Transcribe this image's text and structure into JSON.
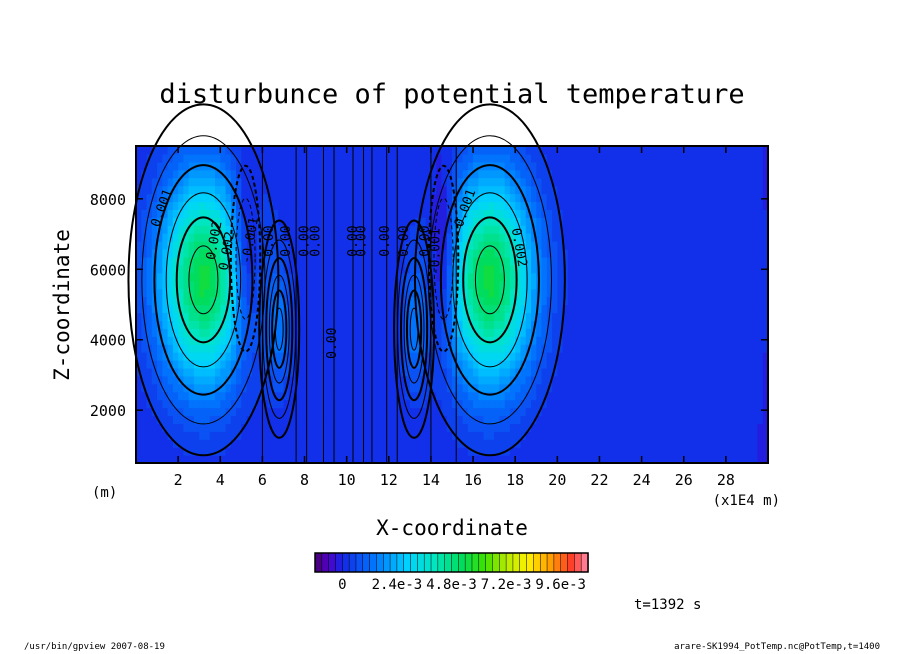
{
  "chart_data": {
    "type": "heatmap",
    "title": "disturbunce of potential temperature",
    "xlabel": "X-coordinate",
    "ylabel": "Z-coordinate",
    "x_unit_left": "(m)",
    "x_unit_right": "(x1E4 m)",
    "xlim": [
      0,
      30
    ],
    "ylim": [
      500,
      9500
    ],
    "x_ticks": [
      2,
      4,
      6,
      8,
      10,
      12,
      14,
      16,
      18,
      20,
      22,
      24,
      26,
      28
    ],
    "y_ticks": [
      2000,
      4000,
      6000,
      8000
    ],
    "blobs": [
      {
        "x": 3.2,
        "z": 5700,
        "sx": 1.5,
        "sz": 2100,
        "amp": 0.0055
      },
      {
        "x": 16.8,
        "z": 5700,
        "sx": 1.5,
        "sz": 2100,
        "amp": 0.0055
      },
      {
        "x": 5.2,
        "z": 6300,
        "sx": 0.45,
        "sz": 1700,
        "amp": -0.0018
      },
      {
        "x": 14.6,
        "z": 6300,
        "sx": 0.45,
        "sz": 1700,
        "amp": -0.0018
      },
      {
        "x": 6.8,
        "z": 4300,
        "sx": 0.4,
        "sz": 1300,
        "amp": 0.0012
      },
      {
        "x": 13.2,
        "z": 4300,
        "sx": 0.4,
        "sz": 1300,
        "amp": 0.0012
      }
    ],
    "contour_labels": [
      {
        "text": "0.001",
        "x": 1.4,
        "z": 7700,
        "rot": -70
      },
      {
        "text": "0.002",
        "x": 3.9,
        "z": 6800,
        "rot": -80
      },
      {
        "text": "0.002",
        "x": 4.5,
        "z": 6500,
        "rot": -80
      },
      {
        "text": "-0.001",
        "x": 5.6,
        "z": 6800,
        "rot": -80
      },
      {
        "text": "0.00",
        "x": 6.5,
        "z": 6800,
        "rot": -90
      },
      {
        "text": "0.00",
        "x": 7.3,
        "z": 6800,
        "rot": -90
      },
      {
        "text": "0.00",
        "x": 8.2,
        "z": 6800,
        "rot": -90
      },
      {
        "text": "0.00",
        "x": 8.7,
        "z": 6800,
        "rot": -90
      },
      {
        "text": "0.00",
        "x": 10.5,
        "z": 6800,
        "rot": -90
      },
      {
        "text": "0.00",
        "x": 10.9,
        "z": 6800,
        "rot": -90
      },
      {
        "text": "0.00",
        "x": 12.0,
        "z": 6800,
        "rot": -90
      },
      {
        "text": "0.00",
        "x": 12.9,
        "z": 6800,
        "rot": -90
      },
      {
        "text": "0.00",
        "x": 13.9,
        "z": 6800,
        "rot": -90
      },
      {
        "text": "-0.001",
        "x": 14.4,
        "z": 6500,
        "rot": -90
      },
      {
        "text": "0.001",
        "x": 15.8,
        "z": 7700,
        "rot": -70
      },
      {
        "text": "0.002",
        "x": 18.0,
        "z": 6600,
        "rot": 80
      },
      {
        "text": "0.00",
        "x": 9.5,
        "z": 3900,
        "rot": -90
      }
    ],
    "colorbar": {
      "tick_labels": [
        "0",
        "2.4e-3",
        "4.8e-3",
        "7.2e-3",
        "9.6e-3"
      ],
      "min": -0.0012,
      "max": 0.0108,
      "n_levels": 40
    },
    "time_label": "t=1392 s"
  },
  "footer": {
    "left": "/usr/bin/gpview  2007-08-19",
    "right": "arare-SK1994_PotTemp.nc@PotTemp,t=1400"
  }
}
